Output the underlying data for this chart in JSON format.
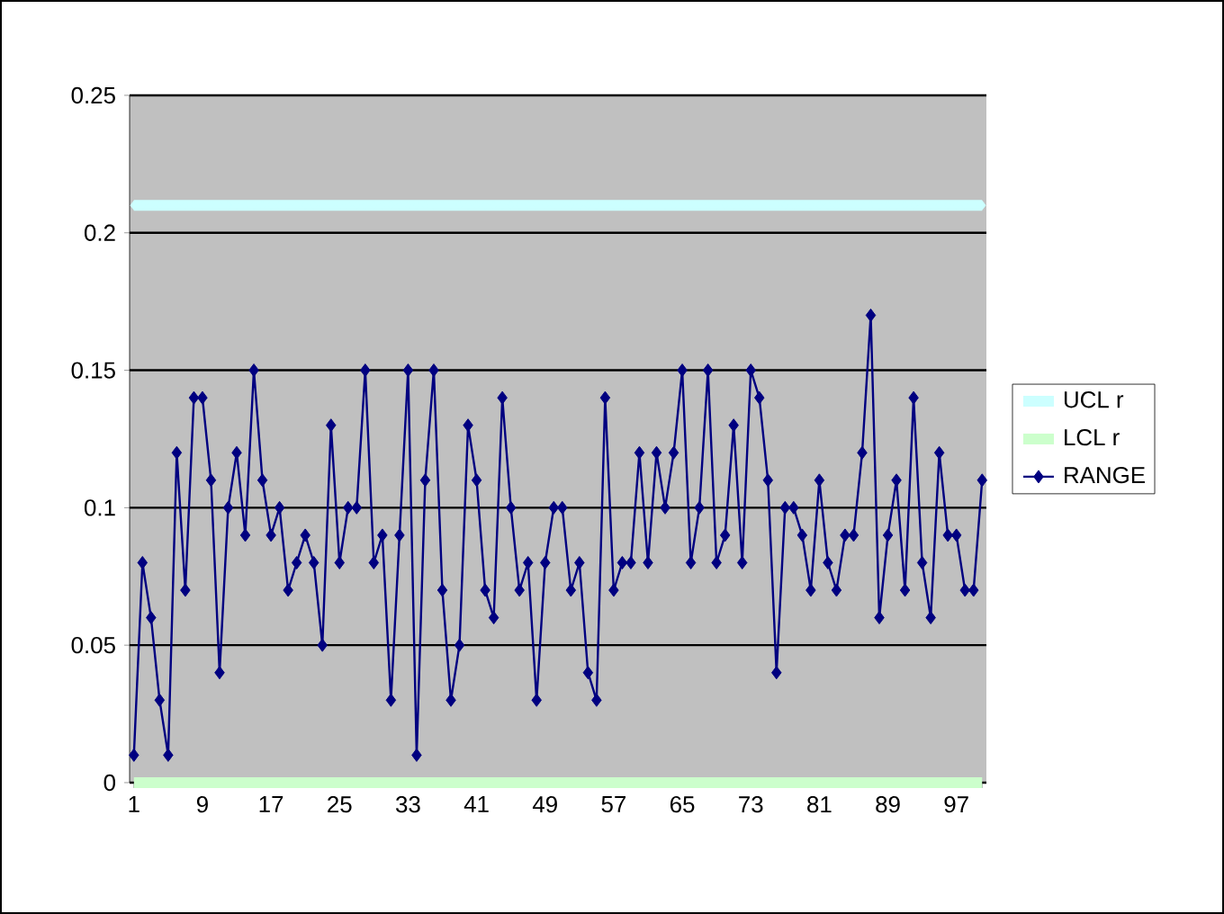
{
  "chart_data": {
    "type": "line",
    "categories": [
      "1",
      null,
      null,
      null,
      null,
      null,
      null,
      null,
      "9",
      null,
      null,
      null,
      null,
      null,
      null,
      null,
      "17",
      null,
      null,
      null,
      null,
      null,
      null,
      null,
      "25",
      null,
      null,
      null,
      null,
      null,
      null,
      null,
      "33",
      null,
      null,
      null,
      null,
      null,
      null,
      null,
      "41",
      null,
      null,
      null,
      null,
      null,
      null,
      null,
      "49",
      null,
      null,
      null,
      null,
      null,
      null,
      null,
      "57",
      null,
      null,
      null,
      null,
      null,
      null,
      null,
      "65",
      null,
      null,
      null,
      null,
      null,
      null,
      null,
      "73",
      null,
      null,
      null,
      null,
      null,
      null,
      null,
      "81",
      null,
      null,
      null,
      null,
      null,
      null,
      null,
      "89",
      null,
      null,
      null,
      null,
      null,
      null,
      null,
      "97",
      null,
      null,
      null
    ],
    "series": [
      {
        "name": "UCL r",
        "color": "#ccffff",
        "marker": "diamond",
        "values": [
          0.21,
          0.21,
          0.21,
          0.21,
          0.21,
          0.21,
          0.21,
          0.21,
          0.21,
          0.21,
          0.21,
          0.21,
          0.21,
          0.21,
          0.21,
          0.21,
          0.21,
          0.21,
          0.21,
          0.21,
          0.21,
          0.21,
          0.21,
          0.21,
          0.21,
          0.21,
          0.21,
          0.21,
          0.21,
          0.21,
          0.21,
          0.21,
          0.21,
          0.21,
          0.21,
          0.21,
          0.21,
          0.21,
          0.21,
          0.21,
          0.21,
          0.21,
          0.21,
          0.21,
          0.21,
          0.21,
          0.21,
          0.21,
          0.21,
          0.21,
          0.21,
          0.21,
          0.21,
          0.21,
          0.21,
          0.21,
          0.21,
          0.21,
          0.21,
          0.21,
          0.21,
          0.21,
          0.21,
          0.21,
          0.21,
          0.21,
          0.21,
          0.21,
          0.21,
          0.21,
          0.21,
          0.21,
          0.21,
          0.21,
          0.21,
          0.21,
          0.21,
          0.21,
          0.21,
          0.21,
          0.21,
          0.21,
          0.21,
          0.21,
          0.21,
          0.21,
          0.21,
          0.21,
          0.21,
          0.21,
          0.21,
          0.21,
          0.21,
          0.21,
          0.21,
          0.21,
          0.21,
          0.21,
          0.21,
          0.21
        ]
      },
      {
        "name": "LCL r",
        "color": "#ccffcc",
        "values": [
          0,
          0,
          0,
          0,
          0,
          0,
          0,
          0,
          0,
          0,
          0,
          0,
          0,
          0,
          0,
          0,
          0,
          0,
          0,
          0,
          0,
          0,
          0,
          0,
          0,
          0,
          0,
          0,
          0,
          0,
          0,
          0,
          0,
          0,
          0,
          0,
          0,
          0,
          0,
          0,
          0,
          0,
          0,
          0,
          0,
          0,
          0,
          0,
          0,
          0,
          0,
          0,
          0,
          0,
          0,
          0,
          0,
          0,
          0,
          0,
          0,
          0,
          0,
          0,
          0,
          0,
          0,
          0,
          0,
          0,
          0,
          0,
          0,
          0,
          0,
          0,
          0,
          0,
          0,
          0,
          0,
          0,
          0,
          0,
          0,
          0,
          0,
          0,
          0,
          0,
          0,
          0,
          0,
          0,
          0,
          0,
          0,
          0,
          0,
          0
        ]
      },
      {
        "name": "RANGE",
        "color": "#000080",
        "marker": "diamond",
        "values": [
          0.01,
          0.08,
          0.06,
          0.03,
          0.01,
          0.12,
          0.07,
          0.14,
          0.14,
          0.11,
          0.04,
          0.1,
          0.12,
          0.09,
          0.15,
          0.11,
          0.09,
          0.1,
          0.07,
          0.08,
          0.09,
          0.08,
          0.05,
          0.13,
          0.08,
          0.1,
          0.1,
          0.15,
          0.08,
          0.09,
          0.03,
          0.09,
          0.15,
          0.01,
          0.11,
          0.15,
          0.07,
          0.03,
          0.05,
          0.13,
          0.11,
          0.07,
          0.06,
          0.14,
          0.1,
          0.07,
          0.08,
          0.03,
          0.08,
          0.1,
          0.1,
          0.07,
          0.08,
          0.04,
          0.03,
          0.14,
          0.07,
          0.08,
          0.08,
          0.12,
          0.08,
          0.12,
          0.1,
          0.12,
          0.15,
          0.08,
          0.1,
          0.15,
          0.08,
          0.09,
          0.13,
          0.08,
          0.15,
          0.14,
          0.11,
          0.04,
          0.1,
          0.1,
          0.09,
          0.07,
          0.11,
          0.08,
          0.07,
          0.09,
          0.09,
          0.12,
          0.17,
          0.06,
          0.09,
          0.11,
          0.07,
          0.14,
          0.08,
          0.06,
          0.12,
          0.09,
          0.09,
          0.07,
          0.07,
          0.11
        ]
      }
    ],
    "ylim": [
      0,
      0.25
    ],
    "yticks": [
      0,
      0.05,
      0.1,
      0.15,
      0.2,
      0.25
    ],
    "grid": "y",
    "legend": "right"
  }
}
